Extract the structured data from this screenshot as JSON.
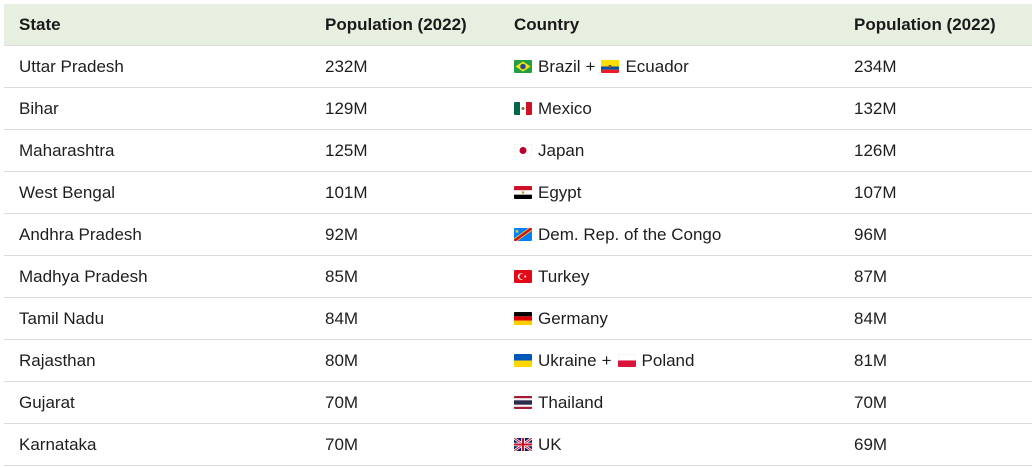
{
  "headers": [
    "State",
    "Population (2022)",
    "Country",
    "Population (2022)"
  ],
  "rows": [
    {
      "state": "Uttar Pradesh",
      "state_pop": "232M",
      "countries": [
        {
          "flag": "brazil-flag-icon",
          "name": "Brazil"
        },
        {
          "flag": "ecuador-flag-icon",
          "name": "Ecuador"
        }
      ],
      "country_pop": "234M"
    },
    {
      "state": "Bihar",
      "state_pop": "129M",
      "countries": [
        {
          "flag": "mexico-flag-icon",
          "name": "Mexico"
        }
      ],
      "country_pop": "132M"
    },
    {
      "state": "Maharashtra",
      "state_pop": "125M",
      "countries": [
        {
          "flag": "japan-flag-icon",
          "name": "Japan"
        }
      ],
      "country_pop": "126M"
    },
    {
      "state": "West Bengal",
      "state_pop": "101M",
      "countries": [
        {
          "flag": "egypt-flag-icon",
          "name": "Egypt"
        }
      ],
      "country_pop": "107M"
    },
    {
      "state": "Andhra Pradesh",
      "state_pop": "92M",
      "countries": [
        {
          "flag": "drc-flag-icon",
          "name": "Dem. Rep. of the Congo"
        }
      ],
      "country_pop": "96M"
    },
    {
      "state": "Madhya Pradesh",
      "state_pop": "85M",
      "countries": [
        {
          "flag": "turkey-flag-icon",
          "name": "Turkey"
        }
      ],
      "country_pop": "87M"
    },
    {
      "state": "Tamil Nadu",
      "state_pop": "84M",
      "countries": [
        {
          "flag": "germany-flag-icon",
          "name": "Germany"
        }
      ],
      "country_pop": "84M"
    },
    {
      "state": "Rajasthan",
      "state_pop": "80M",
      "countries": [
        {
          "flag": "ukraine-flag-icon",
          "name": "Ukraine"
        },
        {
          "flag": "poland-flag-icon",
          "name": "Poland"
        }
      ],
      "country_pop": "81M"
    },
    {
      "state": "Gujarat",
      "state_pop": "70M",
      "countries": [
        {
          "flag": "thailand-flag-icon",
          "name": "Thailand"
        }
      ],
      "country_pop": "70M"
    },
    {
      "state": "Karnataka",
      "state_pop": "70M",
      "countries": [
        {
          "flag": "uk-flag-icon",
          "name": "UK"
        }
      ],
      "country_pop": "69M"
    }
  ],
  "joiner": "+",
  "colors": {
    "header_bg": "#e7efe1",
    "row_border": "#dcdcdc"
  }
}
